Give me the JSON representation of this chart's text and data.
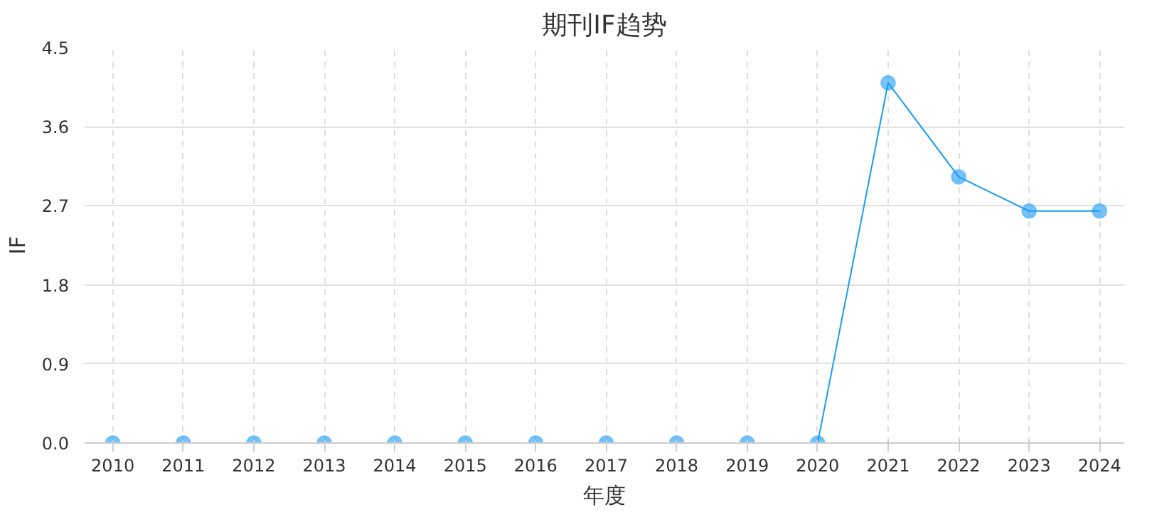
{
  "chart_data": {
    "type": "line",
    "title": "期刊IF趋势",
    "xlabel": "年度",
    "ylabel": "IF",
    "categories": [
      "2010",
      "2011",
      "2012",
      "2013",
      "2014",
      "2015",
      "2016",
      "2017",
      "2018",
      "2019",
      "2020",
      "2021",
      "2022",
      "2023",
      "2024"
    ],
    "series": [
      {
        "color": "#1a9bf5",
        "values": [
          0,
          0,
          0,
          0,
          0,
          0,
          0,
          0,
          0,
          0,
          0,
          4.1,
          3.03,
          2.64,
          2.64
        ]
      }
    ],
    "ylim": [
      0,
      4.5
    ],
    "yticks": [
      {
        "value": 0,
        "label": "0.0"
      },
      {
        "value": 0.9,
        "label": "0.9"
      },
      {
        "value": 1.8,
        "label": "1.8"
      },
      {
        "value": 2.7,
        "label": "2.7"
      },
      {
        "value": 3.6,
        "label": "3.6"
      },
      {
        "value": 4.5,
        "label": "4.5"
      }
    ],
    "grid": true,
    "marker": "circle"
  }
}
